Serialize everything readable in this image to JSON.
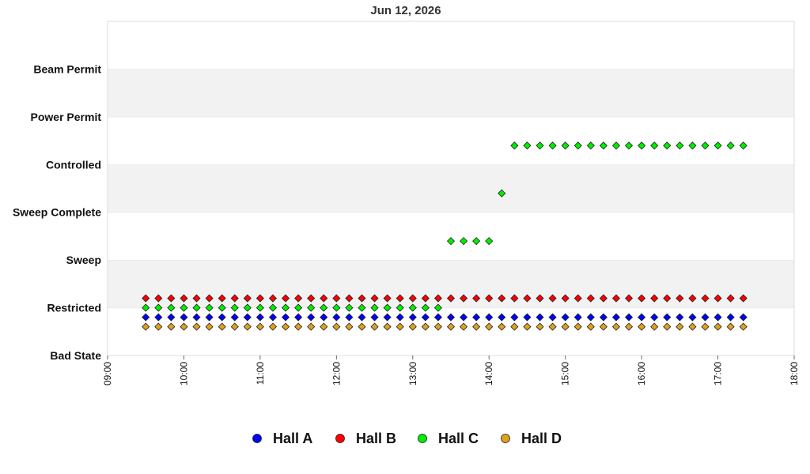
{
  "chart_data": {
    "type": "scatter",
    "title": "Jun 12, 2026",
    "y_categories": [
      "Bad State",
      "Restricted",
      "Sweep",
      "Sweep Complete",
      "Controlled",
      "Power Permit",
      "Beam Permit"
    ],
    "x_ticks": [
      "09:00",
      "10:00",
      "11:00",
      "12:00",
      "13:00",
      "14:00",
      "15:00",
      "16:00",
      "17:00",
      "18:00"
    ],
    "x_range": [
      "09:00",
      "18:00"
    ],
    "x_interval_minutes": 10,
    "banded_background": true,
    "legend_position": "bottom",
    "series": [
      {
        "name": "Hall A",
        "color": "#0000ff",
        "segments": [
          {
            "state": "Restricted",
            "from": "09:30",
            "to": "17:20"
          }
        ]
      },
      {
        "name": "Hall B",
        "color": "#ff0000",
        "segments": [
          {
            "state": "Restricted",
            "from": "09:30",
            "to": "17:20"
          }
        ]
      },
      {
        "name": "Hall C",
        "color": "#00ee00",
        "segments": [
          {
            "state": "Restricted",
            "from": "09:30",
            "to": "13:20"
          },
          {
            "state": "Sweep",
            "from": "13:30",
            "to": "14:00"
          },
          {
            "state": "Sweep Complete",
            "from": "14:10",
            "to": "14:10"
          },
          {
            "state": "Controlled",
            "from": "14:20",
            "to": "17:20"
          }
        ]
      },
      {
        "name": "Hall D",
        "color": "#e0a020",
        "segments": [
          {
            "state": "Restricted",
            "from": "09:30",
            "to": "17:20"
          }
        ]
      }
    ]
  }
}
